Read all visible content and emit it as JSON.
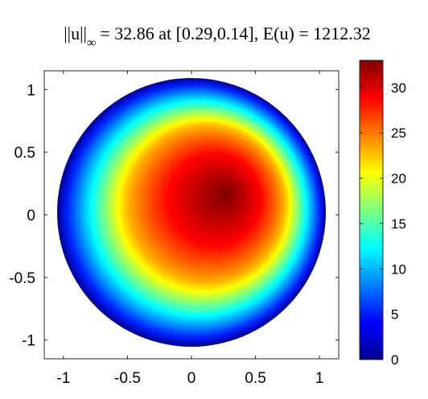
{
  "chart_data": {
    "type": "heatmap",
    "title": {
      "norm_symbol": "||u||",
      "norm_subscript": "∞",
      "rest": "= 32.86 at [0.29,0.14], E(u) = 1212.32"
    },
    "max_value": 32.86,
    "max_location": [
      0.29,
      0.14
    ],
    "energy": 1212.32,
    "domain": "unit disk",
    "disk_radius": 1,
    "xlim": [
      -1.15,
      1.15
    ],
    "ylim": [
      -1.15,
      1.15
    ],
    "x_ticks": [
      -1,
      -0.5,
      0,
      0.5,
      1
    ],
    "x_tick_labels": [
      "-1",
      "-0.5",
      "0",
      "0.5",
      "1"
    ],
    "y_ticks": [
      1,
      0.5,
      0,
      -0.5,
      -1
    ],
    "y_tick_labels": [
      "1",
      "0.5",
      "0",
      "-0.5",
      "-1"
    ],
    "colormap": "jet",
    "colorbar": {
      "range": [
        0,
        33
      ],
      "ticks": [
        30,
        25,
        20,
        15,
        10,
        5,
        0
      ],
      "tick_labels": [
        "30",
        "25",
        "20",
        "15",
        "10",
        "5",
        "0"
      ]
    },
    "grid": false
  }
}
